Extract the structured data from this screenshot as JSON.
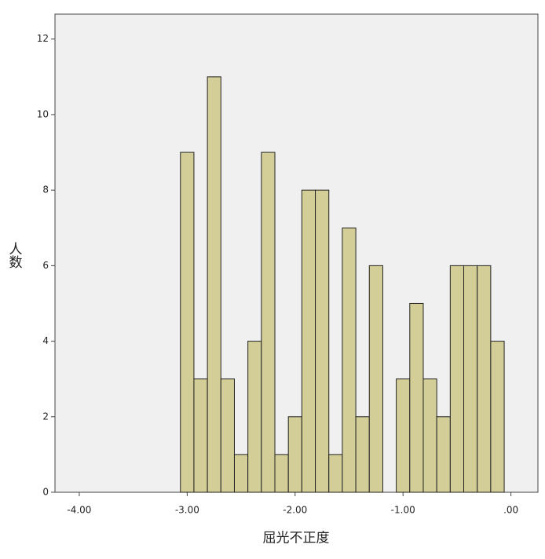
{
  "chart_data": {
    "type": "histogram",
    "x_label": "屈光不正度",
    "y_label": "人数",
    "bins": [
      -3.0625,
      -2.9375,
      -2.8125,
      -2.6875,
      -2.5625,
      -2.4375,
      -2.3125,
      -2.1875,
      -2.0625,
      -1.9375,
      -1.8125,
      -1.6875,
      -1.5625,
      -1.4375,
      -1.3125,
      -1.1875,
      -1.0625,
      -0.9375,
      -0.8125,
      -0.6875,
      -0.5625,
      -0.4375,
      -0.3125,
      -0.1875,
      -0.0625
    ],
    "values": [
      9,
      3,
      11,
      3,
      1,
      4,
      9,
      1,
      2,
      8,
      8,
      1,
      7,
      2,
      6,
      0,
      3,
      5,
      3,
      2,
      6,
      6,
      6,
      4
    ],
    "color": "#d3ce97",
    "xlim": [
      -4.225,
      0.25
    ],
    "ylim": [
      0,
      12.66
    ],
    "xticks": [
      {
        "value": -4,
        "label": "-4.00"
      },
      {
        "value": -3,
        "label": "-3.00"
      },
      {
        "value": -2,
        "label": "-2.00"
      },
      {
        "value": -1,
        "label": "-1.00"
      },
      {
        "value": 0,
        "label": ".00"
      }
    ],
    "yticks": [
      0,
      2,
      4,
      6,
      8,
      10,
      12
    ]
  }
}
